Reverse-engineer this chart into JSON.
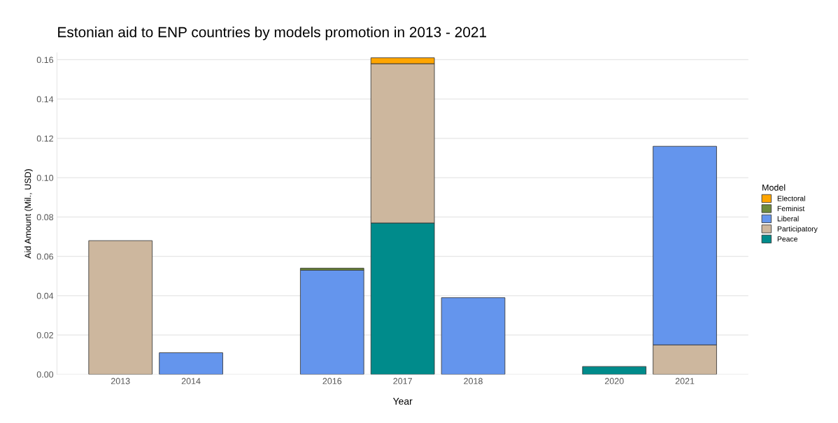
{
  "chart_data": {
    "type": "bar",
    "stacked": true,
    "title": "Estonian aid to ENP countries by models promotion in 2013 - 2021",
    "xlabel": "Year",
    "ylabel": "Aid Amount (Mil., USD)",
    "legend_title": "Model",
    "legend": "right",
    "grid": "y",
    "x": [
      2013,
      2014,
      2016,
      2017,
      2018,
      2020,
      2021
    ],
    "xlim": [
      2012.1,
      2021.9
    ],
    "xticks": [
      2013,
      2014,
      2016,
      2017,
      2018,
      2020,
      2021
    ],
    "ylim": [
      0,
      0.1635
    ],
    "yticks": [
      {
        "value": 0,
        "label": "0.00"
      },
      {
        "value": 0.02,
        "label": "0.02"
      },
      {
        "value": 0.04,
        "label": "0.04"
      },
      {
        "value": 0.06,
        "label": "0.06"
      },
      {
        "value": 0.08,
        "label": "0.08"
      },
      {
        "value": 0.1,
        "label": "0.10"
      },
      {
        "value": 0.12,
        "label": "0.12"
      },
      {
        "value": 0.14,
        "label": "0.14"
      },
      {
        "value": 0.16,
        "label": "0.16"
      }
    ],
    "series": [
      {
        "name": "Peace",
        "color": "#008b8b",
        "values": [
          null,
          null,
          null,
          0.077,
          null,
          0.004,
          null
        ]
      },
      {
        "name": "Participatory",
        "color": "#cdb79e",
        "values": [
          0.068,
          null,
          null,
          0.081,
          null,
          null,
          0.015
        ]
      },
      {
        "name": "Liberal",
        "color": "#6495ed",
        "values": [
          null,
          0.011,
          0.053,
          null,
          0.039,
          null,
          0.101
        ]
      },
      {
        "name": "Feminist",
        "color": "#6e8b3d",
        "values": [
          null,
          null,
          0.001,
          null,
          null,
          null,
          null
        ]
      },
      {
        "name": "Electoral",
        "color": "#ffa500",
        "values": [
          null,
          null,
          null,
          0.003,
          null,
          null,
          null
        ]
      }
    ]
  }
}
